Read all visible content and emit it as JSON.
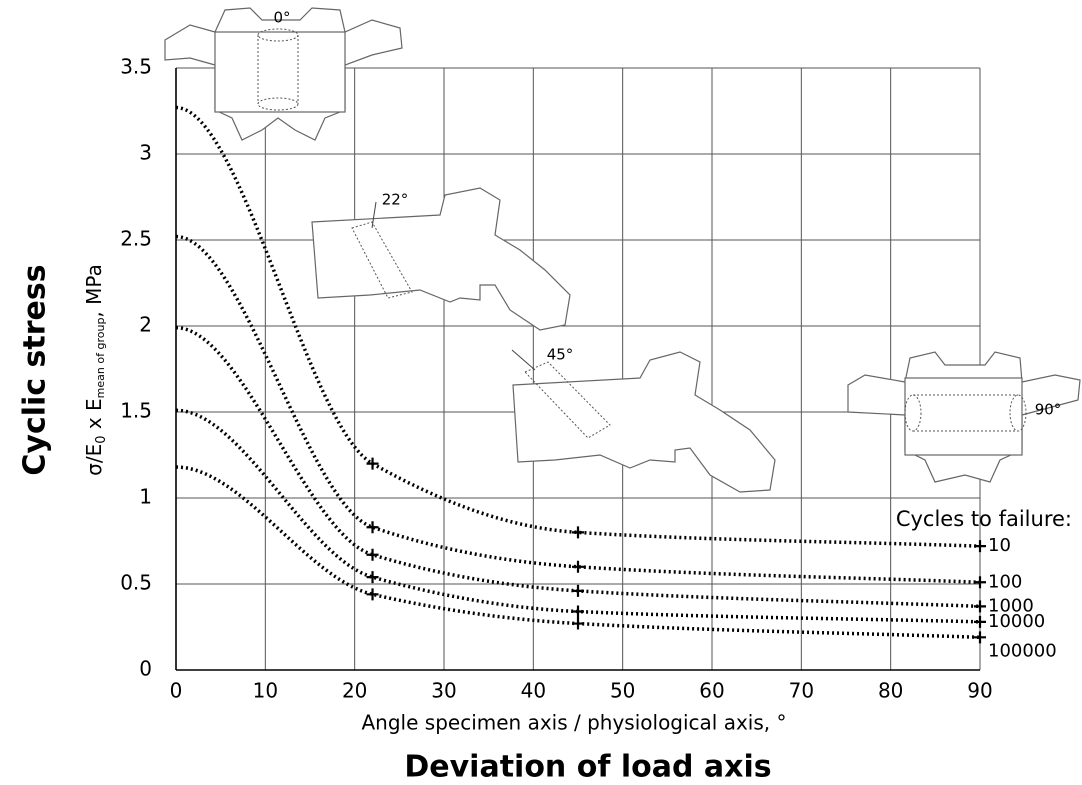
{
  "chart_data": {
    "type": "line",
    "title_left": "Cyclic stress",
    "title_bottom": "Deviation of load axis",
    "ylabel": [
      "σ/E",
      "0",
      " x E",
      "mean of group",
      ", MPa"
    ],
    "xlabel": "Angle specimen axis / physiological axis, °",
    "legend_title": "Cycles to failure:",
    "x": [
      0,
      22,
      45,
      90
    ],
    "series": [
      {
        "name": "10",
        "color": "#000000",
        "values": [
          3.27,
          1.2,
          0.8,
          0.72
        ]
      },
      {
        "name": "100",
        "color": "#000000",
        "values": [
          2.52,
          0.83,
          0.6,
          0.51
        ]
      },
      {
        "name": "1000",
        "color": "#000000",
        "values": [
          1.99,
          0.67,
          0.46,
          0.37
        ]
      },
      {
        "name": "10000",
        "color": "#000000",
        "values": [
          1.51,
          0.54,
          0.34,
          0.28
        ]
      },
      {
        "name": "100000",
        "color": "#000000",
        "values": [
          1.18,
          0.44,
          0.27,
          0.19
        ]
      }
    ],
    "xlim": [
      0,
      90
    ],
    "xticks": [
      0,
      10,
      20,
      30,
      40,
      50,
      60,
      70,
      80,
      90
    ],
    "ylim": [
      0,
      3.5
    ],
    "yticks": [
      0,
      0.5,
      1,
      1.5,
      2,
      2.5,
      3,
      3.5
    ],
    "grid": true
  },
  "annotations": [
    "0°",
    "22°",
    "45°",
    "90°"
  ]
}
